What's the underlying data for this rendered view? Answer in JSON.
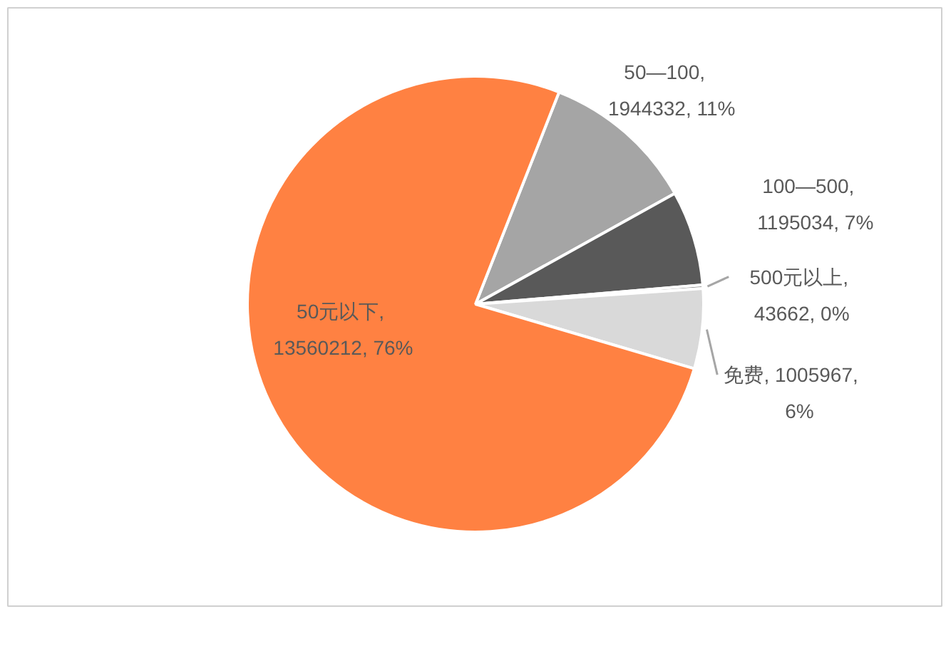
{
  "chart_data": {
    "type": "pie",
    "categories": [
      "50—100",
      "100—500",
      "500元以上",
      "免费",
      "50元以下"
    ],
    "values": [
      1944332,
      1195034,
      43662,
      1005967,
      13560212
    ],
    "colors": [
      "#a5a5a5",
      "#595959",
      "#7f7f7f",
      "#d9d9d9",
      "#ff8142"
    ],
    "value_labels": [
      ",\n1944332, 11%",
      ",\n1195034, 7%",
      ",\n43662, 0%",
      ", 1005967,\n6%",
      ",\n13560212, 76%"
    ]
  }
}
